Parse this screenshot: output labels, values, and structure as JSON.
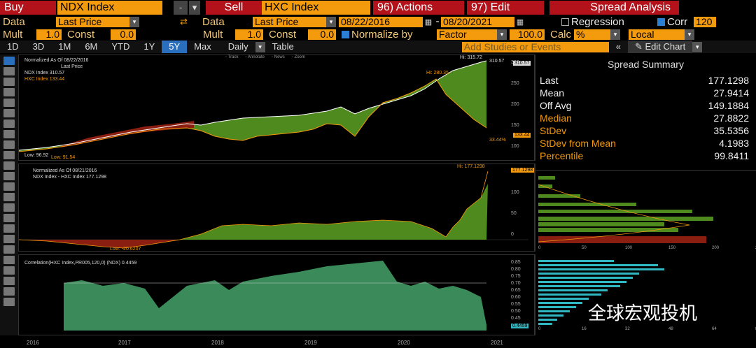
{
  "toolbar": {
    "buy_label": "Buy",
    "buy_security": "NDX Index",
    "minus": "-",
    "sell_label": "Sell",
    "sell_security": "HXC Index",
    "actions": "96) Actions",
    "edit": "97) Edit",
    "spread_analysis": "Spread Analysis"
  },
  "data_row": {
    "data_label_left": "Data",
    "data_left": "Last Price",
    "data_label_right": "Data",
    "data_right": "Last Price",
    "date_start": "08/22/2016",
    "date_end": "08/20/2021",
    "dash": "-",
    "regression": "Regression",
    "corr": "Corr",
    "corr_value": "120"
  },
  "mult_row": {
    "mult_left_label": "Mult",
    "mult_left": "1.0",
    "const_left_label": "Const",
    "const_left": "0.0",
    "mult_right_label": "Mult",
    "mult_right": "1.0",
    "const_right_label": "Const",
    "const_right": "0.0",
    "normalize_label": "Normalize by",
    "normalize_value": "Factor",
    "normalize_factor": "100.0",
    "calc_label": "Calc",
    "calc_value": "%",
    "local": "Local"
  },
  "tabs": [
    "1D",
    "3D",
    "1M",
    "6M",
    "YTD",
    "1Y",
    "5Y",
    "Max",
    "Daily",
    "Table"
  ],
  "active_tab": "5Y",
  "studies_placeholder": "Add Studies or Events",
  "edit_chart": "Edit Chart",
  "panel1": {
    "heading": "Normalized As Of 08/22/2016",
    "subheading": "Last Price",
    "ndx_legend": "NDX Index 310.57",
    "hxc_legend": "HXC Index 133.44",
    "hi_label": "Hi: 315.72",
    "hi_value_right": "310.57",
    "hi2_label": "Hi: 280.35",
    "low1": "Low: 96.92",
    "low2": "Low: 91.54",
    "pct_label": "33.44%",
    "badge1": "310.57",
    "badge2": "133.44",
    "tracks": [
      "Track",
      "Annotate",
      "News",
      "Zoom"
    ],
    "yticks": [
      "300",
      "250",
      "200",
      "150",
      "100"
    ]
  },
  "panel2": {
    "heading": "Normalized As Of 08/21/2016",
    "legend": "NDX Index - HXC Index 177.1298",
    "hi_label": "Hi: 177.1298",
    "low_label": "Low: -20.6207",
    "badge": "177.1298",
    "yticks": [
      "150",
      "100",
      "50",
      "0"
    ]
  },
  "panel3": {
    "legend": "Correlation(HXC Index,PR005,120,0) (NDX) 0.4459",
    "badge": "0.4459",
    "yticks": [
      "0.85",
      "0.80",
      "0.75",
      "0.70",
      "0.65",
      "0.60",
      "0.55",
      "0.50",
      "0.45"
    ]
  },
  "summary": {
    "title": "Spread Summary",
    "rows": [
      {
        "k": "Last",
        "v": "177.1298",
        "orange": false
      },
      {
        "k": "Mean",
        "v": "27.9414",
        "orange": false
      },
      {
        "k": "Off Avg",
        "v": "149.1884",
        "orange": false
      },
      {
        "k": "Median",
        "v": "27.8822",
        "orange": true
      },
      {
        "k": "StDev",
        "v": "35.5356",
        "orange": true
      },
      {
        "k": "StDev from Mean",
        "v": "4.1983",
        "orange": true
      },
      {
        "k": "Percentile",
        "v": "99.8411",
        "orange": true
      }
    ]
  },
  "hist1_xticks": [
    "0",
    "50",
    "100",
    "150",
    "200",
    "250"
  ],
  "hist2_xticks": [
    "0",
    "16",
    "32",
    "48",
    "64",
    "80"
  ],
  "years": [
    "2016",
    "2017",
    "2018",
    "2019",
    "2020",
    "2021"
  ],
  "watermark": "全球宏观投机",
  "colors": {
    "green": "#4f8a1e",
    "red": "#8a1e10",
    "teal": "#2fb7c2",
    "orange": "#f39a0d"
  }
}
